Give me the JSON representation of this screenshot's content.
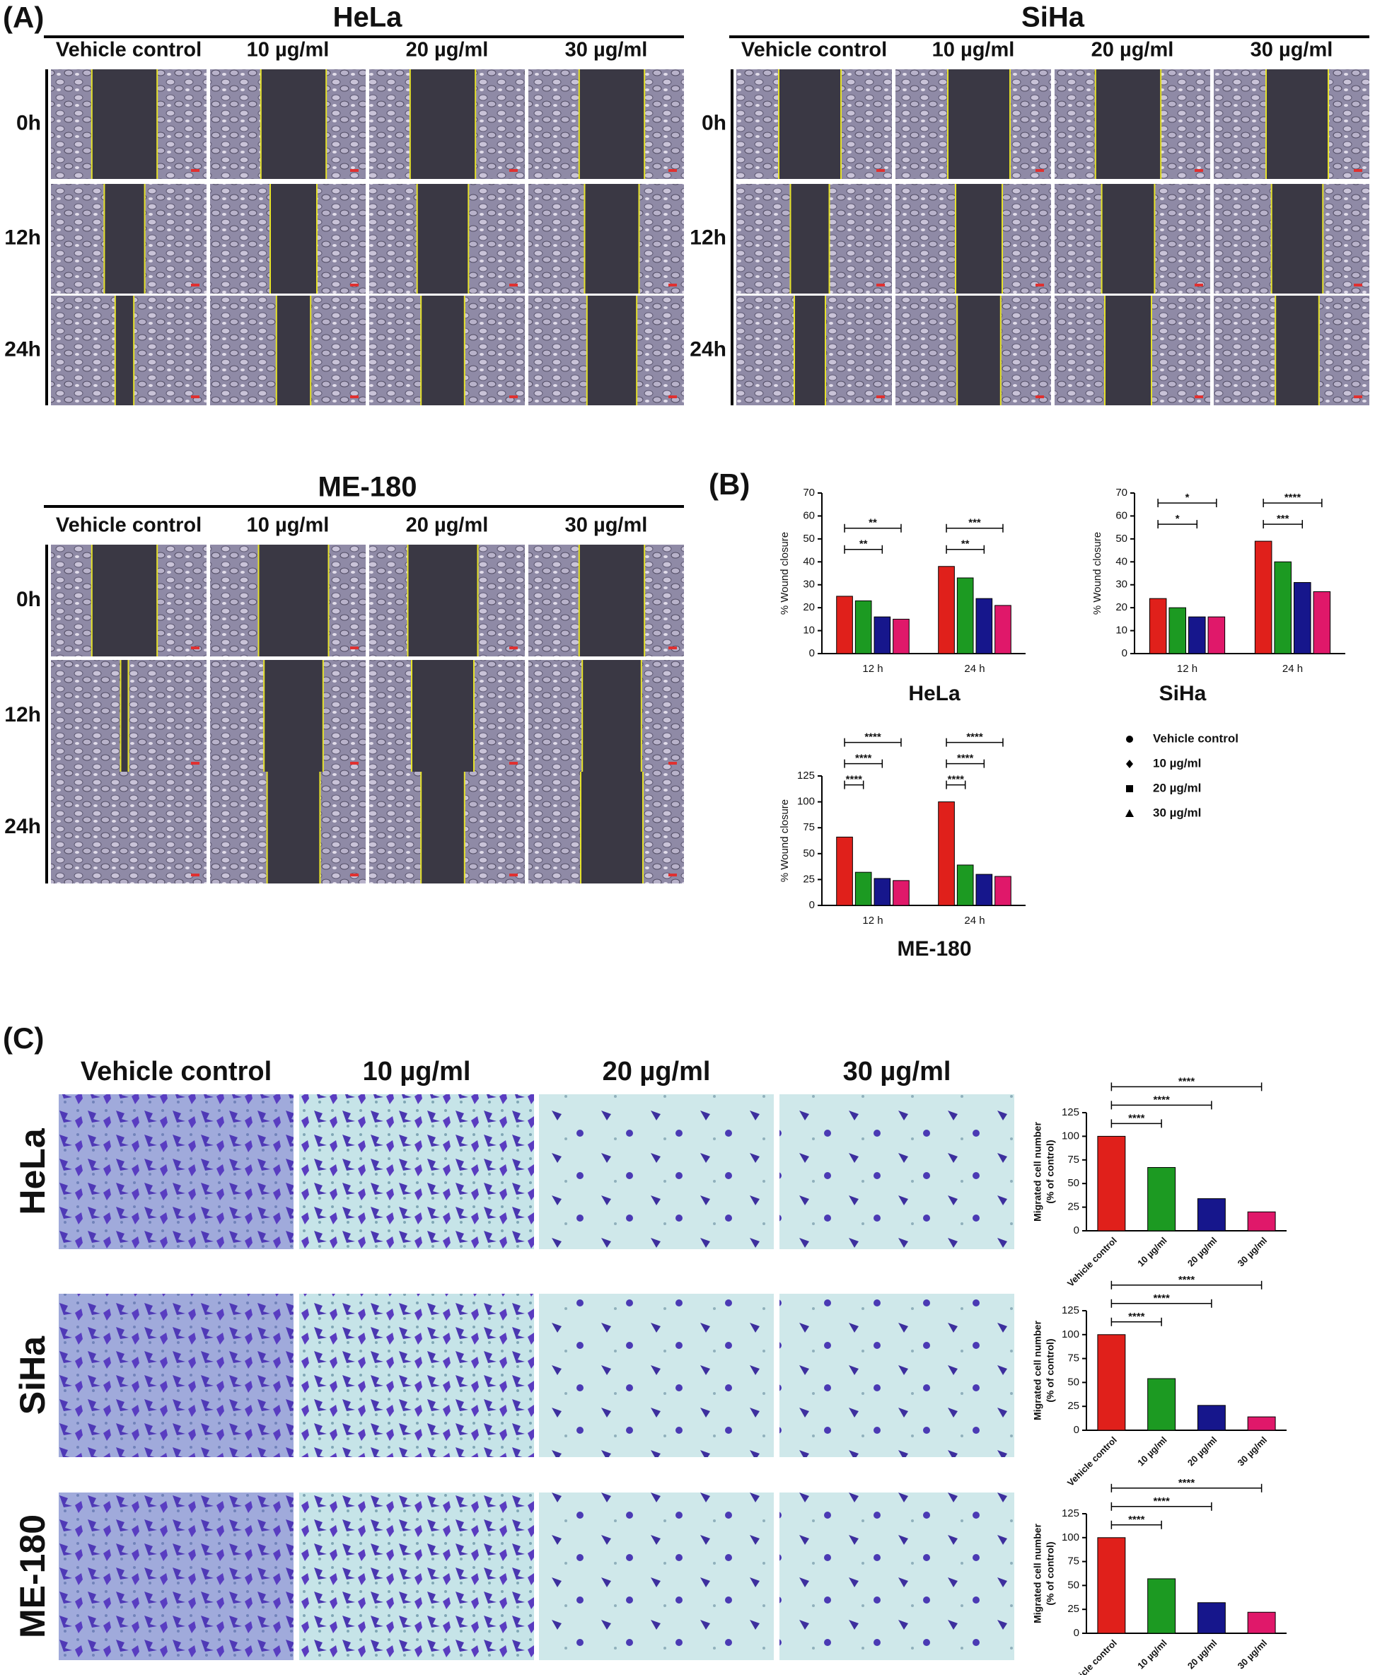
{
  "panel_a": {
    "label": "(A)",
    "conditions": [
      "Vehicle control",
      "10 µg/ml",
      "20 µg/ml",
      "30 µg/ml"
    ],
    "times": [
      "0h",
      "12h",
      "24h"
    ],
    "cell_lines": [
      "HeLa",
      "SiHa",
      "ME-180"
    ]
  },
  "panel_b": {
    "label": "(B)"
  },
  "panel_c": {
    "label": "(C)",
    "conditions": [
      "Vehicle control",
      "10 µg/ml",
      "20 µg/ml",
      "30 µg/ml"
    ],
    "cell_lines": [
      "HeLa",
      "SiHa",
      "ME-180"
    ]
  },
  "chart_data": [
    {
      "type": "bar",
      "title": "HeLa",
      "ylabel": "% Wound closure",
      "categories": [
        "12 h",
        "24 h"
      ],
      "series": [
        {
          "name": "Vehicle control",
          "color": "#e0201b",
          "values": [
            25,
            38
          ]
        },
        {
          "name": "10 µg/ml",
          "color": "#1c9a22",
          "values": [
            23,
            33
          ]
        },
        {
          "name": "20 µg/ml",
          "color": "#16168c",
          "values": [
            16,
            24
          ]
        },
        {
          "name": "30 µg/ml",
          "color": "#e0186a",
          "values": [
            15,
            21
          ]
        }
      ],
      "ylim": [
        0,
        70
      ],
      "yticks": [
        0,
        10,
        20,
        30,
        40,
        50,
        60,
        70
      ],
      "significance": [
        [
          "**",
          "**"
        ],
        [
          "**",
          "***"
        ]
      ]
    },
    {
      "type": "bar",
      "title": "SiHa",
      "ylabel": "% Wound closure",
      "categories": [
        "12 h",
        "24 h"
      ],
      "series": [
        {
          "name": "Vehicle control",
          "color": "#e0201b",
          "values": [
            24,
            49
          ]
        },
        {
          "name": "10 µg/ml",
          "color": "#1c9a22",
          "values": [
            20,
            40
          ]
        },
        {
          "name": "20 µg/ml",
          "color": "#16168c",
          "values": [
            16,
            31
          ]
        },
        {
          "name": "30 µg/ml",
          "color": "#e0186a",
          "values": [
            16,
            27
          ]
        }
      ],
      "ylim": [
        0,
        70
      ],
      "yticks": [
        0,
        10,
        20,
        30,
        40,
        50,
        60,
        70
      ],
      "significance": [
        [
          "*",
          "*"
        ],
        [
          "***",
          "****"
        ]
      ]
    },
    {
      "type": "bar",
      "title": "ME-180",
      "ylabel": "% Wound closure",
      "categories": [
        "12 h",
        "24 h"
      ],
      "series": [
        {
          "name": "Vehicle control",
          "color": "#e0201b",
          "values": [
            66,
            100
          ]
        },
        {
          "name": "10 µg/ml",
          "color": "#1c9a22",
          "values": [
            32,
            39
          ]
        },
        {
          "name": "20 µg/ml",
          "color": "#16168c",
          "values": [
            26,
            30
          ]
        },
        {
          "name": "30 µg/ml",
          "color": "#e0186a",
          "values": [
            24,
            28
          ]
        }
      ],
      "ylim": [
        0,
        125
      ],
      "yticks": [
        0,
        25,
        50,
        75,
        100,
        125
      ],
      "significance": [
        [
          "****",
          "****",
          "****"
        ],
        [
          "****",
          "****",
          "****"
        ]
      ]
    },
    {
      "type": "bar",
      "ylabel": "Migrated cell number",
      "ylabel2": "(% of control)",
      "categories": [
        "Vehicle control",
        "10 µg/ml",
        "20 µg/ml",
        "30 µg/ml"
      ],
      "values": [
        100,
        67,
        34,
        20
      ],
      "colors": [
        "#e0201b",
        "#1c9a22",
        "#16168c",
        "#e0186a"
      ],
      "ylim": [
        0,
        125
      ],
      "yticks": [
        0,
        25,
        50,
        75,
        100,
        125
      ],
      "significance": [
        "****",
        "****",
        "****"
      ]
    },
    {
      "type": "bar",
      "ylabel": "Migrated cell number",
      "ylabel2": "(% of control)",
      "categories": [
        "Vehicle control",
        "10 µg/ml",
        "20 µg/ml",
        "30 µg/ml"
      ],
      "values": [
        100,
        54,
        26,
        14
      ],
      "colors": [
        "#e0201b",
        "#1c9a22",
        "#16168c",
        "#e0186a"
      ],
      "ylim": [
        0,
        125
      ],
      "yticks": [
        0,
        25,
        50,
        75,
        100,
        125
      ],
      "significance": [
        "****",
        "****",
        "****"
      ]
    },
    {
      "type": "bar",
      "ylabel": "Migrated cell number",
      "ylabel2": "(% of control)",
      "categories": [
        "Vehicle control",
        "10 µg/ml",
        "20 µg/ml",
        "30 µg/ml"
      ],
      "values": [
        100,
        57,
        32,
        22
      ],
      "colors": [
        "#e0201b",
        "#1c9a22",
        "#16168c",
        "#e0186a"
      ],
      "ylim": [
        0,
        125
      ],
      "yticks": [
        0,
        25,
        50,
        75,
        100,
        125
      ],
      "significance": [
        "****",
        "****",
        "****"
      ]
    }
  ]
}
